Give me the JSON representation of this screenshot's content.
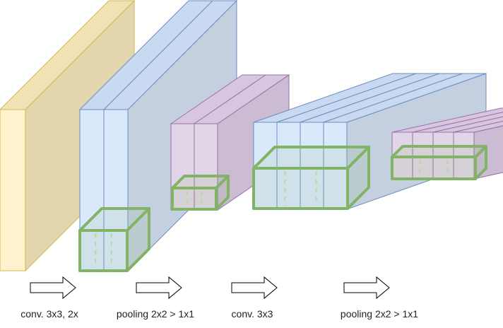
{
  "colors": {
    "yellow_front": "#fff2cc",
    "yellow_side": "#e2d6ae",
    "yellow_top": "#f0e2b4",
    "yellow_stroke": "#d6b656",
    "blue_front": "#dae8fc",
    "blue_side": "#c4cfe0",
    "blue_top": "#c9d9f1",
    "blue_stroke": "#6c8ebf",
    "purple_front": "#e1d5e7",
    "purple_side": "#cbbbd3",
    "purple_top": "#d8c6e0",
    "purple_stroke": "#9673a6",
    "kernel_stroke": "#82b366"
  },
  "layers": [
    {
      "name": "input",
      "color": "yellow",
      "slices": 1
    },
    {
      "name": "conv-1",
      "color": "blue",
      "slices": 2
    },
    {
      "name": "pool-1",
      "color": "purple",
      "slices": 2
    },
    {
      "name": "conv-2",
      "color": "blue",
      "slices": 4
    },
    {
      "name": "pool-2",
      "color": "purple",
      "slices": 4
    }
  ],
  "steps": [
    {
      "label": "conv. 3x3, 2x"
    },
    {
      "label": "pooling 2x2 > 1x1"
    },
    {
      "label": "conv. 3x3"
    },
    {
      "label": "pooling 2x2 > 1x1"
    }
  ]
}
